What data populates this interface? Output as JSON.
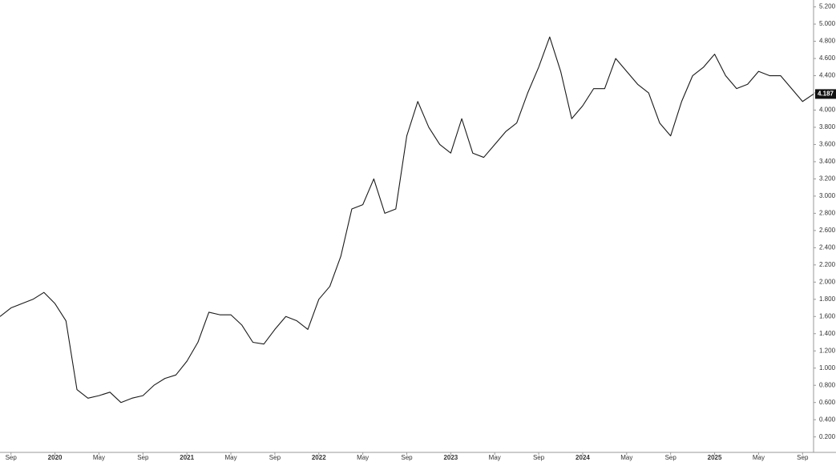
{
  "chart_data": {
    "type": "line",
    "x": [
      "2019-08",
      "2019-09",
      "2019-10",
      "2019-11",
      "2019-12",
      "2020-01",
      "2020-02",
      "2020-03",
      "2020-04",
      "2020-05",
      "2020-06",
      "2020-07",
      "2020-08",
      "2020-09",
      "2020-10",
      "2020-11",
      "2020-12",
      "2021-01",
      "2021-02",
      "2021-03",
      "2021-04",
      "2021-05",
      "2021-06",
      "2021-07",
      "2021-08",
      "2021-09",
      "2021-10",
      "2021-11",
      "2021-12",
      "2022-01",
      "2022-02",
      "2022-03",
      "2022-04",
      "2022-05",
      "2022-06",
      "2022-07",
      "2022-08",
      "2022-09",
      "2022-10",
      "2022-11",
      "2022-12",
      "2023-01",
      "2023-02",
      "2023-03",
      "2023-04",
      "2023-05",
      "2023-06",
      "2023-07",
      "2023-08",
      "2023-09",
      "2023-10",
      "2023-11",
      "2023-12",
      "2024-01",
      "2024-02",
      "2024-03",
      "2024-04",
      "2024-05",
      "2024-06",
      "2024-07",
      "2024-08",
      "2024-09",
      "2024-10",
      "2024-11",
      "2024-12",
      "2025-01",
      "2025-02",
      "2025-03",
      "2025-04",
      "2025-05",
      "2025-06",
      "2025-07",
      "2025-08",
      "2025-09",
      "2025-10"
    ],
    "values": [
      1.6,
      1.7,
      1.75,
      1.8,
      1.88,
      1.75,
      1.55,
      0.75,
      0.65,
      0.68,
      0.72,
      0.6,
      0.65,
      0.68,
      0.8,
      0.88,
      0.92,
      1.08,
      1.3,
      1.65,
      1.62,
      1.62,
      1.5,
      1.3,
      1.28,
      1.45,
      1.6,
      1.55,
      1.45,
      1.8,
      1.95,
      2.3,
      2.85,
      2.9,
      3.2,
      2.8,
      2.85,
      3.7,
      4.1,
      3.8,
      3.6,
      3.5,
      3.9,
      3.5,
      3.45,
      3.6,
      3.75,
      3.85,
      4.2,
      4.5,
      4.85,
      4.45,
      3.9,
      4.05,
      4.25,
      4.25,
      4.6,
      4.45,
      4.3,
      4.2,
      3.85,
      3.7,
      4.1,
      4.4,
      4.5,
      4.65,
      4.4,
      4.25,
      4.3,
      4.45,
      4.4,
      4.4,
      4.25,
      4.1,
      4.187
    ],
    "color": "#1a1a1a",
    "xlim": [
      "2019-08",
      "2025-10"
    ],
    "xticks": [
      {
        "value": "2019-09",
        "label": "Sep"
      },
      {
        "value": "2020-01",
        "label": "2020"
      },
      {
        "value": "2020-05",
        "label": "May"
      },
      {
        "value": "2020-09",
        "label": "Sep"
      },
      {
        "value": "2021-01",
        "label": "2021"
      },
      {
        "value": "2021-05",
        "label": "May"
      },
      {
        "value": "2021-09",
        "label": "Sep"
      },
      {
        "value": "2022-01",
        "label": "2022"
      },
      {
        "value": "2022-05",
        "label": "May"
      },
      {
        "value": "2022-09",
        "label": "Sep"
      },
      {
        "value": "2023-01",
        "label": "2023"
      },
      {
        "value": "2023-05",
        "label": "May"
      },
      {
        "value": "2023-09",
        "label": "Sep"
      },
      {
        "value": "2024-01",
        "label": "2024"
      },
      {
        "value": "2024-05",
        "label": "May"
      },
      {
        "value": "2024-09",
        "label": "Sep"
      },
      {
        "value": "2025-01",
        "label": "2025"
      },
      {
        "value": "2025-05",
        "label": "May"
      },
      {
        "value": "2025-09",
        "label": "Sep"
      }
    ],
    "ylim": [
      0.02,
      5.28
    ],
    "yticks": [
      {
        "value": 0.2,
        "label": "0.200"
      },
      {
        "value": 0.4,
        "label": "0.400"
      },
      {
        "value": 0.6,
        "label": "0.600"
      },
      {
        "value": 0.8,
        "label": "0.800"
      },
      {
        "value": 1.0,
        "label": "1.000"
      },
      {
        "value": 1.2,
        "label": "1.200"
      },
      {
        "value": 1.4,
        "label": "1.400"
      },
      {
        "value": 1.6,
        "label": "1.600"
      },
      {
        "value": 1.8,
        "label": "1.800"
      },
      {
        "value": 2.0,
        "label": "2.000"
      },
      {
        "value": 2.2,
        "label": "2.200"
      },
      {
        "value": 2.4,
        "label": "2.400"
      },
      {
        "value": 2.6,
        "label": "2.600"
      },
      {
        "value": 2.8,
        "label": "2.800"
      },
      {
        "value": 3.0,
        "label": "3.000"
      },
      {
        "value": 3.2,
        "label": "3.200"
      },
      {
        "value": 3.4,
        "label": "3.400"
      },
      {
        "value": 3.6,
        "label": "3.600"
      },
      {
        "value": 3.8,
        "label": "3.800"
      },
      {
        "value": 4.0,
        "label": "4.000"
      },
      {
        "value": 4.2,
        "label": "4.200"
      },
      {
        "value": 4.4,
        "label": "4.400"
      },
      {
        "value": 4.6,
        "label": "4.600"
      },
      {
        "value": 4.8,
        "label": "4.800"
      },
      {
        "value": 5.0,
        "label": "5.000"
      },
      {
        "value": 5.2,
        "label": "5.200"
      }
    ],
    "y_axis_side": "right",
    "grid": false
  }
}
